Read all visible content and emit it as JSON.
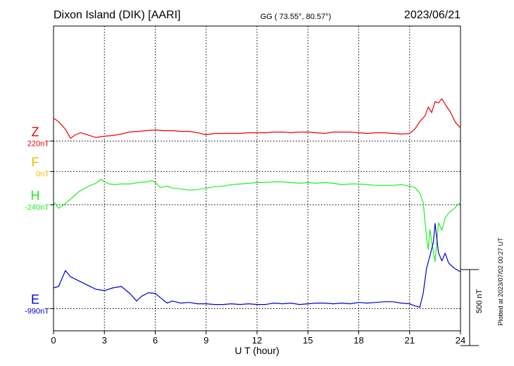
{
  "header": {
    "station": "Dixon Island (DIK)  [AARI]",
    "coords": "GG ( 73.55°,  80.57°)",
    "date": "2023/06/21"
  },
  "footer": {
    "plotted": "Plotted at 2023/07/02 00:27 UT",
    "scale": "500 nT"
  },
  "colors": {
    "F": "#f5b800",
    "H": "#22ee22",
    "E": "#0000cc",
    "Z": "#ee0000",
    "axis": "#000000"
  },
  "chart_data": {
    "type": "line",
    "title": "Dixon Island (DIK)  [AARI]",
    "xlabel": "U T (hour)",
    "ylabel": "",
    "xlim": [
      0,
      24
    ],
    "xticks": [
      "0",
      "3",
      "6",
      "9",
      "12",
      "15",
      "18",
      "21",
      "24"
    ],
    "ylim_nT": [
      -1150,
      1050
    ],
    "grid": true,
    "scale_bar_nT": 500,
    "series": [
      {
        "name": "F",
        "baseline_label": "0nT",
        "baseline_nT": 0,
        "color": "#f5b800",
        "x": [],
        "y": []
      },
      {
        "name": "H",
        "baseline_label": "-240nT",
        "baseline_nT": -240,
        "color": "#22ee22",
        "x": [
          0,
          0.3,
          0.6,
          1.0,
          1.5,
          2.0,
          2.5,
          2.8,
          3.0,
          3.3,
          3.6,
          4.0,
          4.5,
          5.0,
          5.5,
          5.8,
          6.0,
          6.3,
          6.7,
          7.0,
          7.5,
          8.0,
          8.5,
          9.0,
          9.5,
          10.0,
          10.5,
          11.0,
          11.5,
          12.0,
          12.5,
          13.0,
          13.5,
          14.0,
          14.5,
          15.0,
          15.5,
          16.0,
          16.5,
          17.0,
          17.5,
          18.0,
          18.5,
          19.0,
          19.5,
          20.0,
          20.5,
          21.0,
          21.3,
          21.6,
          21.8,
          22.0,
          22.1,
          22.2,
          22.3,
          22.5,
          22.7,
          22.9,
          23.1,
          23.3,
          23.6,
          24.0
        ],
        "y": [
          -215,
          -265,
          -240,
          -200,
          -145,
          -110,
          -85,
          -55,
          -75,
          -90,
          -95,
          -90,
          -90,
          -80,
          -75,
          -65,
          -80,
          -115,
          -105,
          -120,
          -125,
          -135,
          -130,
          -120,
          -110,
          -105,
          -95,
          -90,
          -85,
          -80,
          -80,
          -75,
          -75,
          -80,
          -85,
          -80,
          -85,
          -80,
          -85,
          -95,
          -90,
          -90,
          -95,
          -100,
          -100,
          -100,
          -95,
          -105,
          -115,
          -155,
          -225,
          -475,
          -565,
          -420,
          -505,
          -650,
          -370,
          -425,
          -335,
          -300,
          -270,
          -220
        ]
      },
      {
        "name": "E",
        "baseline_label": "-990nT",
        "baseline_nT": -990,
        "color": "#0000cc",
        "x": [
          0,
          0.3,
          0.7,
          1.0,
          1.5,
          2.0,
          2.5,
          3.0,
          3.5,
          4.0,
          4.5,
          4.9,
          5.2,
          5.6,
          6.0,
          6.3,
          6.7,
          7.0,
          7.5,
          8.0,
          8.5,
          9.0,
          9.5,
          10.0,
          10.5,
          11.0,
          11.5,
          12.0,
          12.5,
          13.0,
          13.5,
          14.0,
          14.5,
          15.0,
          15.5,
          16.0,
          16.5,
          17.0,
          17.5,
          18.0,
          18.5,
          19.0,
          19.5,
          20.0,
          20.5,
          21.0,
          21.3,
          21.6,
          21.8,
          22.0,
          22.2,
          22.4,
          22.5,
          22.7,
          22.9,
          23.1,
          23.3,
          23.6,
          24.0
        ],
        "y": [
          -840,
          -830,
          -715,
          -760,
          -790,
          -820,
          -850,
          -860,
          -840,
          -830,
          -880,
          -935,
          -900,
          -875,
          -880,
          -910,
          -950,
          -935,
          -950,
          -945,
          -955,
          -955,
          -960,
          -960,
          -955,
          -960,
          -955,
          -960,
          -960,
          -950,
          -955,
          -950,
          -960,
          -955,
          -950,
          -950,
          -955,
          -950,
          -955,
          -945,
          -950,
          -945,
          -940,
          -940,
          -950,
          -955,
          -970,
          -980,
          -880,
          -700,
          -610,
          -510,
          -375,
          -585,
          -645,
          -590,
          -660,
          -695,
          -725
        ]
      },
      {
        "name": "Z",
        "baseline_label": "220nT",
        "baseline_nT": 220,
        "color": "#ee0000",
        "x": [
          0,
          0.3,
          0.7,
          1.0,
          1.3,
          1.6,
          2.0,
          2.5,
          3.0,
          3.5,
          4.0,
          4.5,
          5.0,
          5.5,
          6.0,
          6.5,
          7.0,
          7.5,
          8.0,
          8.5,
          9.0,
          9.5,
          10.0,
          10.5,
          11.0,
          11.5,
          12.0,
          12.5,
          13.0,
          13.5,
          14.0,
          14.5,
          15.0,
          15.5,
          16.0,
          16.5,
          17.0,
          17.5,
          18.0,
          18.5,
          19.0,
          19.5,
          20.0,
          20.5,
          21.0,
          21.3,
          21.6,
          21.9,
          22.1,
          22.3,
          22.5,
          22.7,
          22.9,
          23.1,
          23.4,
          23.7,
          24.0
        ],
        "y": [
          385,
          360,
          305,
          240,
          265,
          280,
          265,
          245,
          255,
          260,
          270,
          285,
          290,
          295,
          300,
          295,
          295,
          290,
          290,
          280,
          265,
          275,
          275,
          275,
          275,
          280,
          280,
          280,
          285,
          285,
          280,
          285,
          285,
          280,
          275,
          285,
          285,
          285,
          280,
          275,
          280,
          280,
          275,
          270,
          275,
          305,
          360,
          400,
          465,
          425,
          505,
          495,
          525,
          485,
          430,
          355,
          315
        ]
      }
    ]
  }
}
